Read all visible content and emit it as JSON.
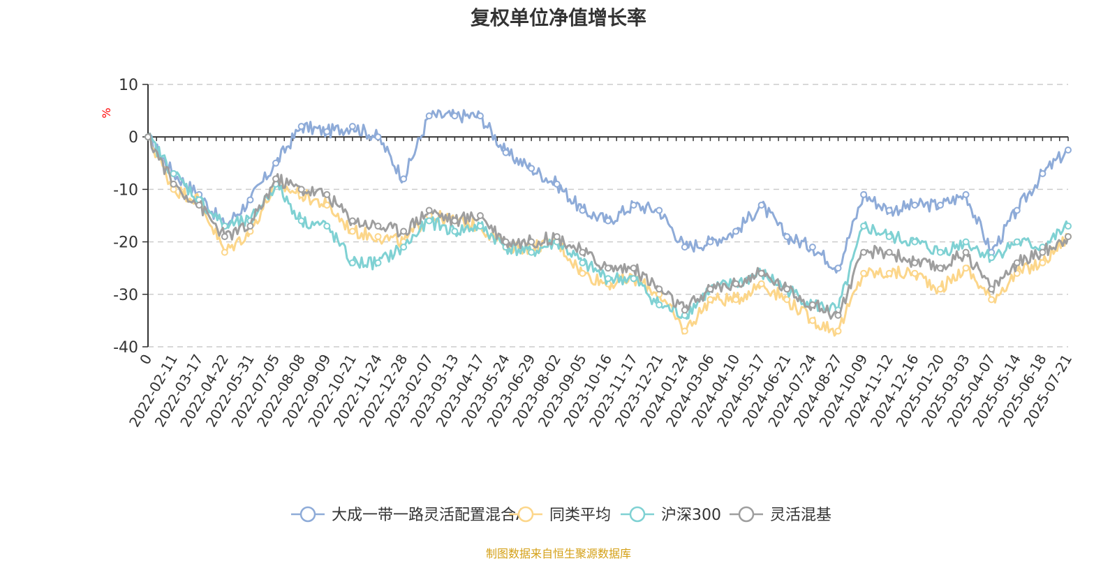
{
  "chart_data": {
    "type": "line",
    "title": "复权单位净值增长率",
    "ylabel": "%",
    "ylim": [
      -40,
      10
    ],
    "yticks": [
      10,
      0,
      -10,
      -20,
      -30,
      -40
    ],
    "grid": true,
    "legend_position": "bottom",
    "x": [
      "0",
      "2022-02-11",
      "2022-03-17",
      "2022-04-22",
      "2022-05-31",
      "2022-07-05",
      "2022-08-08",
      "2022-09-09",
      "2022-10-21",
      "2022-11-24",
      "2022-12-28",
      "2023-02-07",
      "2023-03-13",
      "2023-04-17",
      "2023-05-24",
      "2023-06-29",
      "2023-08-02",
      "2023-09-05",
      "2023-10-16",
      "2023-11-17",
      "2023-12-21",
      "2024-01-24",
      "2024-03-06",
      "2024-04-10",
      "2024-05-17",
      "2024-06-21",
      "2024-07-24",
      "2024-08-27",
      "2024-10-09",
      "2024-11-12",
      "2024-12-16",
      "2025-01-20",
      "2025-03-03",
      "2025-04-07",
      "2025-05-14",
      "2025-06-18",
      "2025-07-21"
    ],
    "series": [
      {
        "name": "大成一带一路灵活配置混合A",
        "color": "#8eabd8",
        "values": [
          0,
          -7,
          -11,
          -17,
          -12,
          -5,
          2,
          1,
          2,
          0,
          -8,
          4,
          4,
          4,
          -3,
          -6,
          -9,
          -14,
          -16,
          -13,
          -14,
          -21,
          -20,
          -18,
          -13,
          -19,
          -21,
          -25,
          -11,
          -14,
          -13,
          -13,
          -11,
          -22,
          -14,
          -7,
          -2.5
        ]
      },
      {
        "name": "同类平均",
        "color": "#fcd68a",
        "values": [
          0,
          -10,
          -12,
          -22,
          -18,
          -9,
          -11,
          -13,
          -18,
          -19,
          -20,
          -15,
          -16,
          -17,
          -21,
          -21,
          -20,
          -26,
          -28,
          -27,
          -30,
          -37,
          -31,
          -31,
          -28,
          -31,
          -35,
          -37,
          -26,
          -26,
          -26,
          -29,
          -25,
          -31,
          -26,
          -24,
          -19
        ]
      },
      {
        "name": "沪深300",
        "color": "#7fd1d3",
        "values": [
          0,
          -7,
          -12,
          -17,
          -16,
          -9,
          -16,
          -17,
          -24,
          -24,
          -21,
          -16,
          -18,
          -17,
          -21,
          -22,
          -20,
          -24,
          -27,
          -27,
          -32,
          -34,
          -29,
          -28,
          -26,
          -29,
          -32,
          -33,
          -17,
          -19,
          -20,
          -22,
          -20,
          -23,
          -20,
          -21,
          -17
        ]
      },
      {
        "name": "灵活混基",
        "color": "#9e9e9e",
        "values": [
          0,
          -9,
          -13,
          -19,
          -17,
          -8,
          -10,
          -11,
          -16,
          -17,
          -18,
          -14,
          -16,
          -15,
          -20,
          -20,
          -19,
          -22,
          -25,
          -25,
          -29,
          -33,
          -29,
          -28,
          -26,
          -29,
          -32,
          -34,
          -22,
          -22,
          -24,
          -25,
          -22,
          -29,
          -24,
          -22,
          -19
        ]
      }
    ]
  },
  "source_note": "制图数据来自恒生聚源数据库"
}
